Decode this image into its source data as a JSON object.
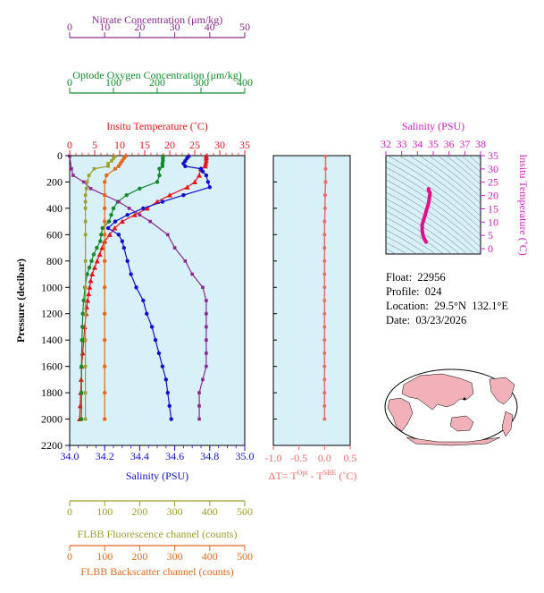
{
  "float_info": {
    "float": "Float:  22956",
    "profile": "Profile:  024",
    "location": "Location:  29.5°N  132.1°E",
    "date": "Date:  03/23/2026"
  },
  "colors": {
    "nitrate": "#8b2a8e",
    "oxygen": "#118a2a",
    "temperature": "#e8141b",
    "salinity": "#1010d0",
    "fluorescence": "#9e9e2a",
    "backscatter": "#e06a1e",
    "delta_t": "#f06a6a",
    "ts_axis": "#d020c0",
    "ts_curve": "#e0108a",
    "plot_bg": "#d8f0f8",
    "land": "#f2b0b8"
  },
  "chart_data": [
    {
      "type": "line",
      "title": "",
      "ylabel": "Pressure (decibar)",
      "ylim": [
        2200,
        0
      ],
      "yticks": [
        "0",
        "200",
        "400",
        "600",
        "800",
        "1000",
        "1200",
        "1400",
        "1600",
        "1800",
        "2000",
        "2200"
      ],
      "axes": {
        "nitrate": {
          "label": "Nitrate Concentration (μm/kg)",
          "range": [
            0,
            50
          ],
          "ticks": [
            "0",
            "10",
            "20",
            "30",
            "40",
            "50"
          ]
        },
        "oxygen": {
          "label": "Optode Oxygen Concentration (μm/kg)",
          "range": [
            0,
            400
          ],
          "ticks": [
            "0",
            "100",
            "200",
            "300",
            "400"
          ]
        },
        "temperature": {
          "label": "Insitu Temperature (˚C)",
          "range": [
            0,
            35
          ],
          "ticks": [
            "0",
            "5",
            "10",
            "15",
            "20",
            "25",
            "30",
            "35"
          ]
        },
        "salinity": {
          "label": "Salinity (PSU)",
          "range": [
            34.0,
            35.0
          ],
          "ticks": [
            "34.0",
            "34.2",
            "34.4",
            "34.6",
            "34.8",
            "35.0"
          ]
        },
        "fluorescence": {
          "label": "FLBB Fluorescence channel (counts)",
          "range": [
            0,
            500
          ],
          "ticks": [
            "0",
            "100",
            "200",
            "300",
            "400",
            "500"
          ]
        },
        "backscatter": {
          "label": "FLBB Backscatter channel (counts)",
          "range": [
            0,
            500
          ],
          "ticks": [
            "0",
            "100",
            "200",
            "300",
            "400",
            "500"
          ]
        }
      },
      "series": [
        {
          "key": "temperature",
          "marker": "triangle",
          "points": [
            [
              5,
              27.3
            ],
            [
              20,
              27.3
            ],
            [
              40,
              27.3
            ],
            [
              60,
              27.2
            ],
            [
              80,
              27.1
            ],
            [
              100,
              26.2
            ],
            [
              150,
              25.9
            ],
            [
              200,
              25.0
            ],
            [
              240,
              23.5
            ],
            [
              300,
              20.0
            ],
            [
              350,
              17.5
            ],
            [
              400,
              15.5
            ],
            [
              450,
              13.0
            ],
            [
              500,
              10.5
            ],
            [
              550,
              9.0
            ],
            [
              600,
              8.0
            ],
            [
              650,
              7.0
            ],
            [
              700,
              6.5
            ],
            [
              750,
              6.0
            ],
            [
              800,
              5.5
            ],
            [
              850,
              5.0
            ],
            [
              900,
              4.5
            ],
            [
              950,
              4.2
            ],
            [
              1000,
              4.0
            ],
            [
              1050,
              3.8
            ],
            [
              1100,
              3.6
            ],
            [
              1150,
              3.4
            ],
            [
              1200,
              3.3
            ],
            [
              1300,
              3.0
            ],
            [
              1400,
              2.8
            ],
            [
              1500,
              2.6
            ],
            [
              1600,
              2.4
            ],
            [
              1700,
              2.3
            ],
            [
              1800,
              2.2
            ],
            [
              1900,
              2.1
            ],
            [
              2000,
              2.0
            ]
          ]
        },
        {
          "key": "salinity",
          "marker": "circle",
          "points": [
            [
              5,
              34.68
            ],
            [
              20,
              34.67
            ],
            [
              40,
              34.66
            ],
            [
              60,
              34.65
            ],
            [
              80,
              34.66
            ],
            [
              100,
              34.75
            ],
            [
              120,
              34.76
            ],
            [
              150,
              34.78
            ],
            [
              200,
              34.79
            ],
            [
              240,
              34.8
            ],
            [
              300,
              34.65
            ],
            [
              350,
              34.53
            ],
            [
              400,
              34.42
            ],
            [
              450,
              34.33
            ],
            [
              500,
              34.26
            ],
            [
              550,
              34.22
            ],
            [
              600,
              34.28
            ],
            [
              650,
              34.3
            ],
            [
              700,
              34.31
            ],
            [
              800,
              34.33
            ],
            [
              900,
              34.35
            ],
            [
              1000,
              34.38
            ],
            [
              1100,
              34.42
            ],
            [
              1200,
              34.44
            ],
            [
              1300,
              34.47
            ],
            [
              1400,
              34.49
            ],
            [
              1500,
              34.51
            ],
            [
              1600,
              34.53
            ],
            [
              1700,
              34.55
            ],
            [
              1800,
              34.56
            ],
            [
              1900,
              34.57
            ],
            [
              2000,
              34.58
            ]
          ]
        },
        {
          "key": "oxygen",
          "marker": "circle",
          "points": [
            [
              5,
              213
            ],
            [
              20,
              213
            ],
            [
              40,
              213
            ],
            [
              60,
              212
            ],
            [
              80,
              212
            ],
            [
              100,
              205
            ],
            [
              150,
              205
            ],
            [
              200,
              200
            ],
            [
              250,
              160
            ],
            [
              300,
              130
            ],
            [
              350,
              110
            ],
            [
              400,
              100
            ],
            [
              450,
              95
            ],
            [
              500,
              90
            ],
            [
              550,
              75
            ],
            [
              600,
              72
            ],
            [
              650,
              70
            ],
            [
              700,
              62
            ],
            [
              750,
              55
            ],
            [
              800,
              50
            ],
            [
              850,
              45
            ],
            [
              900,
              40
            ],
            [
              1000,
              35
            ],
            [
              1100,
              32
            ],
            [
              1200,
              30
            ],
            [
              1300,
              29
            ],
            [
              1400,
              28
            ],
            [
              1600,
              27
            ],
            [
              1800,
              27
            ],
            [
              2000,
              27
            ]
          ]
        },
        {
          "key": "nitrate",
          "marker": "square",
          "points": [
            [
              5,
              0
            ],
            [
              100,
              0.5
            ],
            [
              150,
              1
            ],
            [
              200,
              4
            ],
            [
              250,
              6
            ],
            [
              300,
              10
            ],
            [
              350,
              14
            ],
            [
              400,
              17
            ],
            [
              450,
              20
            ],
            [
              500,
              23
            ],
            [
              600,
              28
            ],
            [
              700,
              30
            ],
            [
              800,
              33
            ],
            [
              900,
              35
            ],
            [
              1000,
              38
            ],
            [
              1100,
              39
            ],
            [
              1200,
              39
            ],
            [
              1300,
              39
            ],
            [
              1400,
              39
            ],
            [
              1500,
              39
            ],
            [
              1600,
              39
            ],
            [
              1700,
              38
            ],
            [
              1800,
              37
            ],
            [
              1900,
              37
            ],
            [
              2000,
              37
            ]
          ]
        },
        {
          "key": "fluorescence",
          "marker": "square",
          "points": [
            [
              5,
              130
            ],
            [
              20,
              125
            ],
            [
              40,
              120
            ],
            [
              60,
              110
            ],
            [
              80,
              110
            ],
            [
              100,
              70
            ],
            [
              150,
              55
            ],
            [
              200,
              50
            ],
            [
              250,
              48
            ],
            [
              300,
              45
            ],
            [
              350,
              45
            ],
            [
              400,
              45
            ],
            [
              500,
              45
            ],
            [
              600,
              45
            ],
            [
              800,
              45
            ],
            [
              1000,
              45
            ],
            [
              1200,
              45
            ],
            [
              1400,
              45
            ],
            [
              1600,
              45
            ],
            [
              1800,
              45
            ],
            [
              2000,
              45
            ]
          ]
        },
        {
          "key": "backscatter",
          "marker": "circle",
          "points": [
            [
              5,
              160
            ],
            [
              20,
              155
            ],
            [
              40,
              150
            ],
            [
              60,
              145
            ],
            [
              80,
              140
            ],
            [
              100,
              130
            ],
            [
              150,
              105
            ],
            [
              200,
              100
            ],
            [
              300,
              100
            ],
            [
              400,
              100
            ],
            [
              500,
              100
            ],
            [
              600,
              100
            ],
            [
              800,
              100
            ],
            [
              1000,
              100
            ],
            [
              1200,
              100
            ],
            [
              1400,
              100
            ],
            [
              1600,
              100
            ],
            [
              1800,
              100
            ],
            [
              2000,
              100
            ]
          ]
        }
      ]
    },
    {
      "type": "line",
      "title": "",
      "xlabel": "ΔT= T",
      "xlabel_sup1": "Opt",
      "xlabel_mid": " - T",
      "xlabel_sup2": "SBE",
      "xlabel_end": " (˚C)",
      "xlim": [
        -1.0,
        0.5
      ],
      "xticks": [
        "-1.0",
        "-0.5",
        "0.0",
        "0.5"
      ],
      "ylim": [
        2200,
        0
      ],
      "series": [
        {
          "name": "",
          "points": [
            [
              5,
              0.02
            ],
            [
              100,
              0.02
            ],
            [
              200,
              0.02
            ],
            [
              300,
              0.01
            ],
            [
              400,
              0.01
            ],
            [
              500,
              0.0
            ],
            [
              600,
              0.0
            ],
            [
              700,
              0.0
            ],
            [
              800,
              0.0
            ],
            [
              900,
              0.0
            ],
            [
              1000,
              0.0
            ],
            [
              1100,
              0.0
            ],
            [
              1200,
              0.0
            ],
            [
              1300,
              0.0
            ],
            [
              1400,
              0.0
            ],
            [
              1500,
              0.0
            ],
            [
              1600,
              0.0
            ],
            [
              1700,
              0.0
            ],
            [
              1800,
              0.0
            ],
            [
              1900,
              0.0
            ],
            [
              2000,
              0.0
            ]
          ]
        }
      ]
    },
    {
      "type": "scatter",
      "title": "",
      "xlabel": "Salinity (PSU)",
      "ylabel": "Insitu Temperature (˚C)",
      "xlim": [
        32,
        38
      ],
      "ylim": [
        -2,
        35
      ],
      "xticks": [
        "32",
        "33",
        "34",
        "35",
        "36",
        "37",
        "38"
      ],
      "yticks": [
        "0",
        "5",
        "10",
        "15",
        "20",
        "25",
        "30",
        "35"
      ],
      "series": [
        {
          "name": "",
          "points": [
            [
              34.7,
              22.5
            ],
            [
              34.7,
              22.0
            ],
            [
              34.8,
              21.0
            ],
            [
              34.75,
              19.0
            ],
            [
              34.7,
              17.0
            ],
            [
              34.6,
              15.0
            ],
            [
              34.5,
              13.0
            ],
            [
              34.4,
              11.0
            ],
            [
              34.3,
              9.0
            ],
            [
              34.3,
              7.0
            ],
            [
              34.35,
              5.0
            ],
            [
              34.45,
              3.5
            ],
            [
              34.55,
              2.5
            ]
          ]
        }
      ]
    }
  ]
}
